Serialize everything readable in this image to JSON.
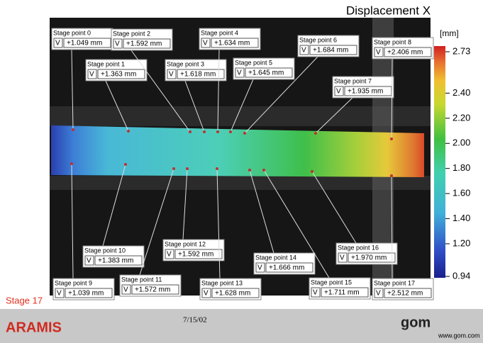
{
  "title": "Displacement X",
  "colorbar": {
    "unit": "[mm]",
    "lim": [
      0.94,
      2.73
    ],
    "ticks": [
      0.94,
      {
        "value": 1.2,
        "label": "1.20"
      },
      {
        "value": 1.4,
        "label": "1.40"
      },
      {
        "value": 1.6,
        "label": "1.60"
      },
      {
        "value": 1.8,
        "label": "1.80"
      },
      {
        "value": 2.0,
        "label": "2.00"
      },
      {
        "value": 2.2,
        "label": "2.20"
      },
      {
        "value": 2.4,
        "label": "2.40"
      },
      2.73
    ]
  },
  "stage_points": [
    {
      "name": "Stage point 0",
      "component": "V",
      "value": "+1.049 mm"
    },
    {
      "name": "Stage point 1",
      "component": "V",
      "value": "+1.363 mm"
    },
    {
      "name": "Stage point 2",
      "component": "V",
      "value": "+1.592 mm"
    },
    {
      "name": "Stage point 3",
      "component": "V",
      "value": "+1.618 mm"
    },
    {
      "name": "Stage point 4",
      "component": "V",
      "value": "+1.634 mm"
    },
    {
      "name": "Stage point 5",
      "component": "V",
      "value": "+1.645 mm"
    },
    {
      "name": "Stage point 6",
      "component": "V",
      "value": "+1.684 mm"
    },
    {
      "name": "Stage point 7",
      "component": "V",
      "value": "+1.935 mm"
    },
    {
      "name": "Stage point 8",
      "component": "V",
      "value": "+2.406 mm"
    },
    {
      "name": "Stage point 9",
      "component": "V",
      "value": "+1.039 mm"
    },
    {
      "name": "Stage point 10",
      "component": "V",
      "value": "+1.383 mm"
    },
    {
      "name": "Stage point 11",
      "component": "V",
      "value": "+1.572 mm"
    },
    {
      "name": "Stage point 12",
      "component": "V",
      "value": "+1.592 mm"
    },
    {
      "name": "Stage point 13",
      "component": "V",
      "value": "+1.628 mm"
    },
    {
      "name": "Stage point 14",
      "component": "V",
      "value": "+1.666 mm"
    },
    {
      "name": "Stage point 15",
      "component": "V",
      "value": "+1.711 mm"
    },
    {
      "name": "Stage point 16",
      "component": "V",
      "value": "+1.970 mm"
    },
    {
      "name": "Stage point 17",
      "component": "V",
      "value": "+2.512 mm"
    }
  ],
  "footer": {
    "stage": "Stage 17",
    "product": "ARAMIS",
    "date": "7/15/02",
    "logo": "gom",
    "url": "www.gom.com"
  }
}
